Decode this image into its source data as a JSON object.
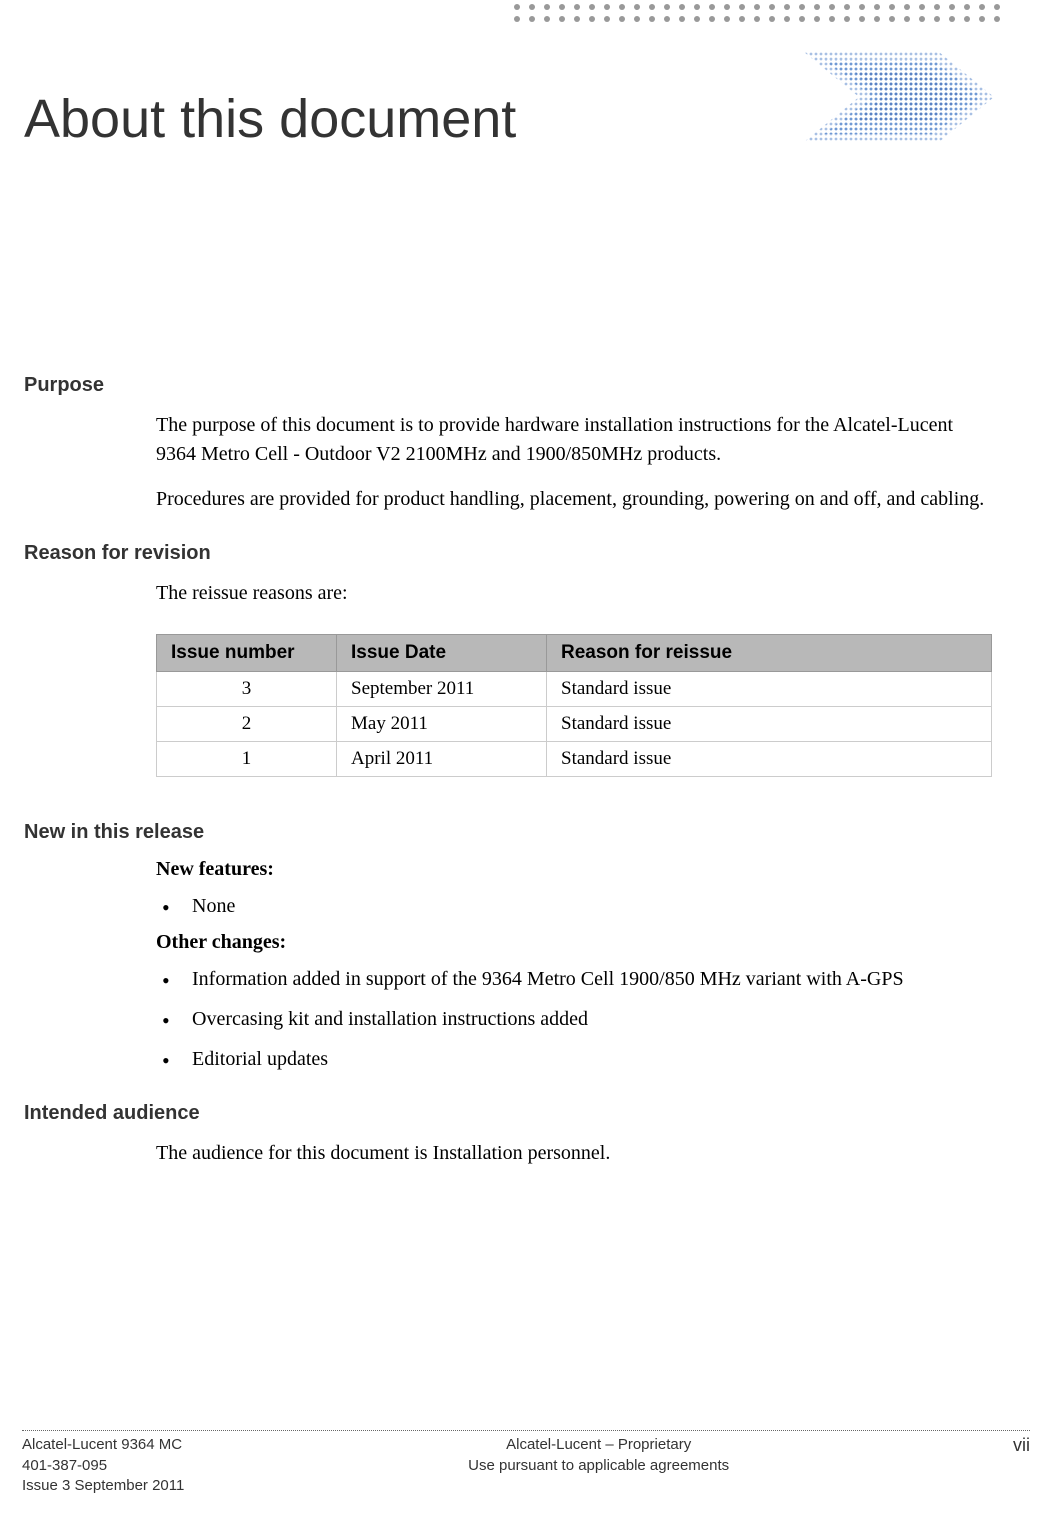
{
  "decoration": {
    "top_dots": {
      "rows": 2,
      "cols": 33,
      "color": "#999999",
      "dot_size": 6,
      "gap": 9
    },
    "arrow": {
      "patch_colors": [
        "#9bb5e0",
        "#7099d4",
        "#a8c0e4",
        "#6a91cc",
        "#8aa8d9",
        "#5a82c4"
      ],
      "background": "#ffffff"
    }
  },
  "title": "About this document",
  "sections": {
    "purpose": {
      "heading": "Purpose",
      "p1": "The purpose of this document is to provide hardware installation instructions for the Alcatel-Lucent 9364 Metro Cell - Outdoor V2 2100MHz and 1900/850MHz products.",
      "p2": "Procedures are provided for product handling, placement, grounding, powering on and off, and cabling."
    },
    "revision": {
      "heading": "Reason for revision",
      "intro": "The reissue reasons are:",
      "table": {
        "columns": [
          "Issue number",
          "Issue Date",
          "Reason for reissue"
        ],
        "rows": [
          [
            "3",
            "September 2011",
            "Standard issue"
          ],
          [
            "2",
            "May 2011",
            "Standard issue"
          ],
          [
            "1",
            "April 2011",
            "Standard issue"
          ]
        ],
        "header_bg": "#b8b8b8",
        "border_color": "#cccccc"
      }
    },
    "new_release": {
      "heading": "New in this release",
      "sub1": "New features:",
      "list1": [
        "None"
      ],
      "sub2": "Other changes:",
      "list2": [
        "Information added in support of the 9364 Metro Cell 1900/850 MHz variant with A-GPS",
        "Overcasing kit and installation instructions added",
        "Editorial updates"
      ]
    },
    "audience": {
      "heading": "Intended audience",
      "p1": "The audience for this document is Installation personnel."
    }
  },
  "footer": {
    "left1": "Alcatel-Lucent 9364 MC",
    "left2": "401-387-095",
    "left3": "Issue 3   September 2011",
    "center1": "Alcatel-Lucent – Proprietary",
    "center2": "Use pursuant to applicable agreements",
    "right": "vii"
  },
  "colors": {
    "text": "#000000",
    "heading": "#333333",
    "background": "#ffffff"
  },
  "typography": {
    "title_fontsize": 54,
    "heading_fontsize": 20,
    "body_fontsize": 20,
    "footer_fontsize": 15
  }
}
